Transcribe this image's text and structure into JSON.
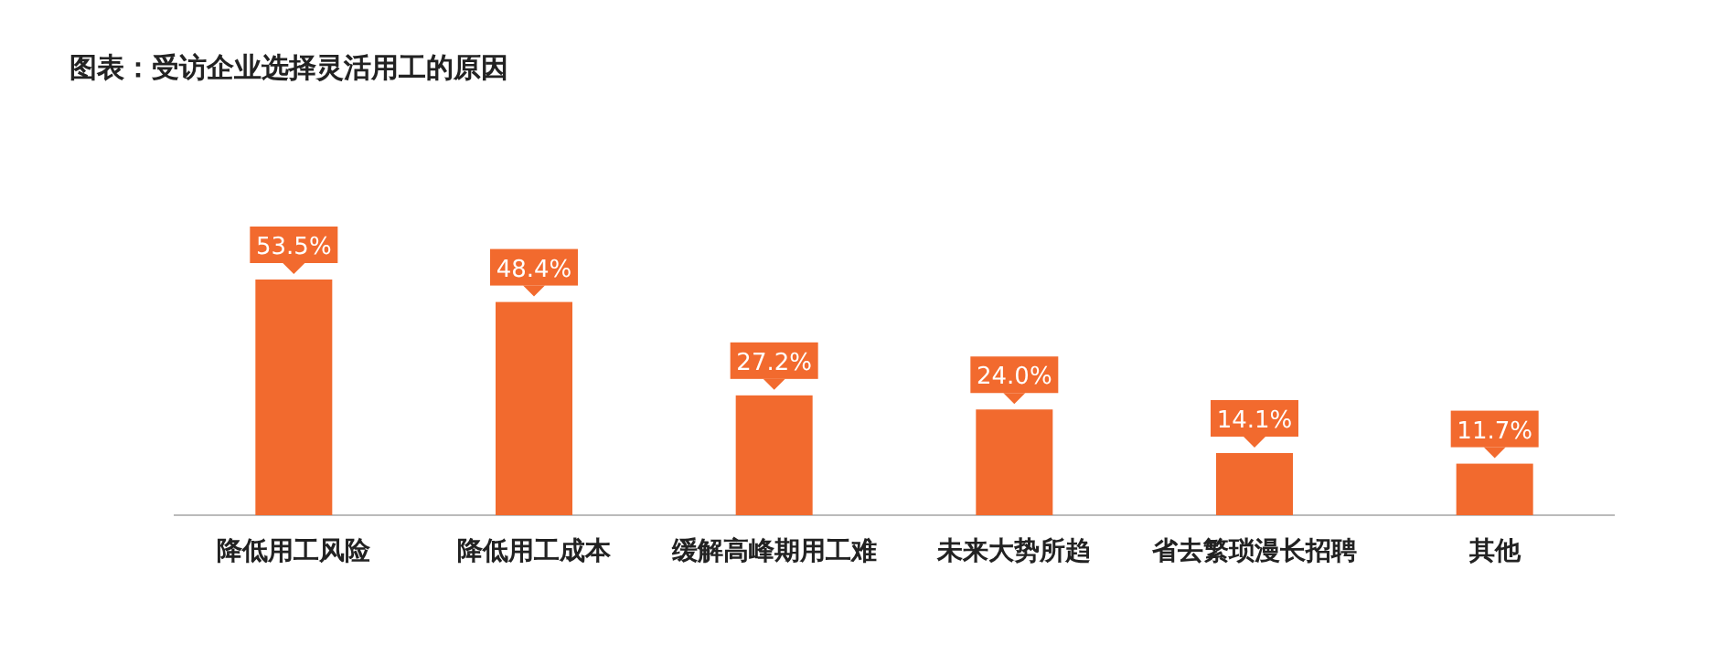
{
  "chart_data": {
    "type": "bar",
    "title": "图表：受访企业选择灵活用工的原因",
    "categories": [
      "降低用工风险",
      "降低用工成本",
      "缓解高峰期用工难",
      "未来大势所趋",
      "省去繁琐漫长招聘",
      "其他"
    ],
    "values": [
      53.5,
      48.4,
      27.2,
      24.0,
      14.1,
      11.7
    ],
    "value_labels": [
      "53.5%",
      "48.4%",
      "27.2%",
      "24.0%",
      "14.1%",
      "11.7%"
    ],
    "color": "#f26a2e"
  }
}
